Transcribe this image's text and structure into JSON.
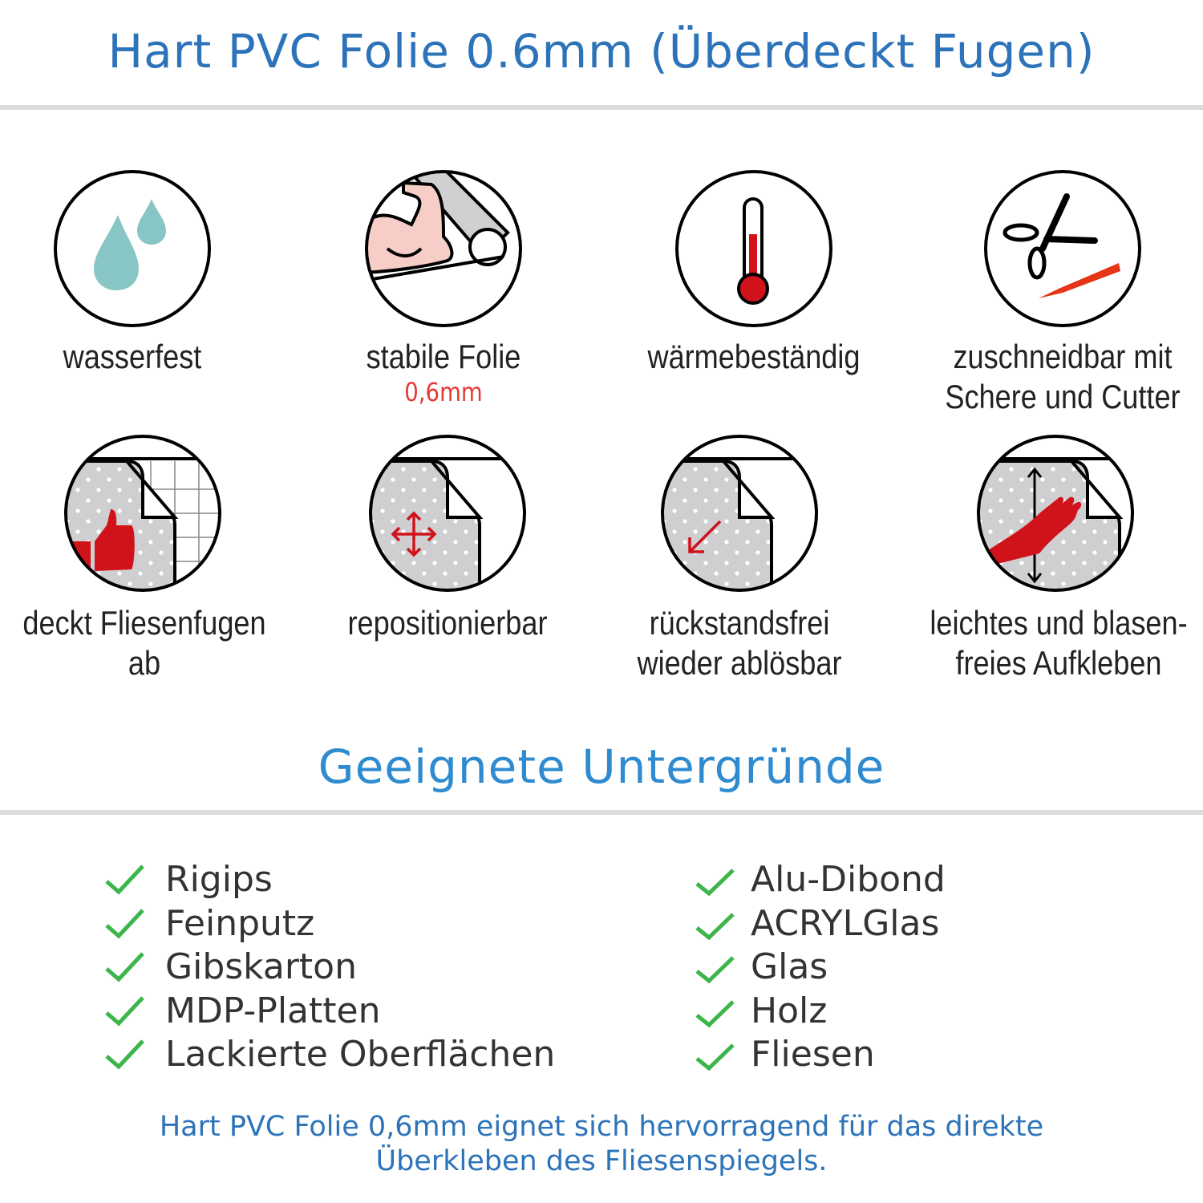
{
  "header": {
    "title": "Hart PVC Folie 0.6mm (Überdeckt Fugen)"
  },
  "features": [
    {
      "icon": "water-drops-icon",
      "label": "wasserfest"
    },
    {
      "icon": "strong-arm-icon",
      "label": "stabile Folie",
      "sublabel": "0,6mm"
    },
    {
      "icon": "thermometer-icon",
      "label": "wärmebeständig"
    },
    {
      "icon": "scissors-cutter-icon",
      "label": "zuschneidbar mit",
      "label2": "Schere und Cutter"
    },
    {
      "icon": "thumbs-up-tiles-icon",
      "label": "deckt Fliesenfugen ab"
    },
    {
      "icon": "move-arrows-icon",
      "label": "repositionierbar"
    },
    {
      "icon": "peel-arrow-icon",
      "label": "rückstandsfrei",
      "label2": "wieder ablösbar"
    },
    {
      "icon": "hand-smooth-icon",
      "label": "leichtes und blasen-",
      "label2": "freies Aufkleben"
    }
  ],
  "surfaces": {
    "title": "Geeignete Untergründe",
    "left": [
      "Rigips",
      "Feinputz",
      "Gibskarton",
      "MDP-Platten",
      "Lackierte Oberflächen"
    ],
    "right": [
      "Alu-Dibond",
      "ACRYLGlas",
      "Glas",
      "Holz",
      "Fliesen"
    ]
  },
  "footer": {
    "line1": "Hart PVC Folie 0,6mm eignet sich hervorragend für das direkte",
    "line2": "Überkleben des Fliesenspiegels."
  },
  "colors": {
    "title": "#2c73b9",
    "section_title": "#2f8bd0",
    "check": "#3cb54a",
    "accent_red": "#d0121b",
    "drop": "#88c5c5"
  }
}
